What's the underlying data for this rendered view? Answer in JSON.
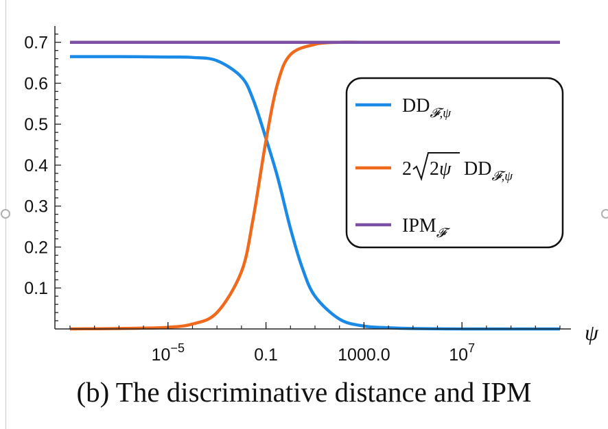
{
  "caption": "(b) The discriminative distance and IPM",
  "chart_data": {
    "type": "line",
    "title": "",
    "xlabel": "ψ",
    "ylabel": "",
    "xscale": "log",
    "xlim": [
      1e-09,
      100000000000.0
    ],
    "ylim": [
      0,
      0.75
    ],
    "x_ticks": [
      {
        "value": 1e-05,
        "base": "10",
        "exp": "−5"
      },
      {
        "value": 0.1,
        "label": "0.1"
      },
      {
        "value": 1000,
        "label": "1000.0"
      },
      {
        "value": 10000000.0,
        "base": "10",
        "exp": "7"
      }
    ],
    "y_ticks": [
      {
        "value": 0.1,
        "label": "0.1"
      },
      {
        "value": 0.2,
        "label": "0.2"
      },
      {
        "value": 0.3,
        "label": "0.3"
      },
      {
        "value": 0.4,
        "label": "0.4"
      },
      {
        "value": 0.5,
        "label": "0.5"
      },
      {
        "value": 0.6,
        "label": "0.6"
      },
      {
        "value": 0.7,
        "label": "0.7"
      }
    ],
    "legend_position": "right",
    "series": [
      {
        "color": "#1a8ae6",
        "legend_main": "DD",
        "legend_sub": "𝓕,ψ",
        "x": [
          1e-09,
          1e-07,
          1e-05,
          0.0001,
          0.001,
          0.01,
          0.03,
          0.1,
          0.3,
          1,
          3,
          10,
          100,
          1000,
          10000.0,
          100000.0,
          10000000.0,
          1000000000.0,
          100000000000.0
        ],
        "y": [
          0.665,
          0.665,
          0.664,
          0.663,
          0.655,
          0.615,
          0.56,
          0.465,
          0.37,
          0.245,
          0.15,
          0.08,
          0.024,
          0.007,
          0.003,
          0.001,
          0.0,
          0.0,
          0.0
        ]
      },
      {
        "color": "#f06a1e",
        "legend_prefix": "2",
        "legend_root": "2ψ",
        "legend_main": "DD",
        "legend_sub": "𝓕,ψ",
        "x": [
          1e-09,
          1e-07,
          1e-06,
          1e-05,
          0.0001,
          0.001,
          0.01,
          0.03,
          0.1,
          0.3,
          1,
          10,
          100,
          1000,
          10000.0,
          10000000.0,
          1000000000.0,
          100000000000.0
        ],
        "y": [
          0.0,
          0.001,
          0.002,
          0.004,
          0.012,
          0.04,
          0.14,
          0.27,
          0.46,
          0.6,
          0.67,
          0.695,
          0.7,
          0.7,
          0.7,
          0.7,
          0.7,
          0.7
        ]
      },
      {
        "color": "#7b4fa6",
        "legend_main": "IPM",
        "legend_sub": "𝓕",
        "x": [
          1e-09,
          100000000000.0
        ],
        "y": [
          0.7,
          0.7
        ]
      }
    ]
  }
}
